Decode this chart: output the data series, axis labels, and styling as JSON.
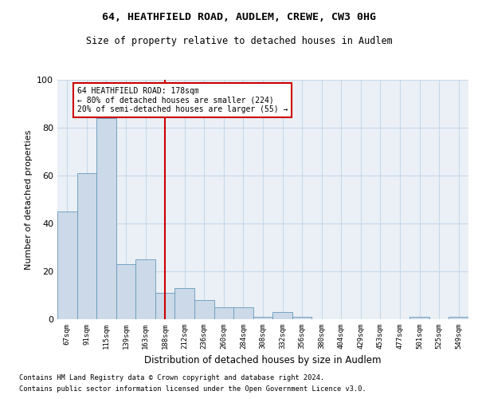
{
  "title": "64, HEATHFIELD ROAD, AUDLEM, CREWE, CW3 0HG",
  "subtitle": "Size of property relative to detached houses in Audlem",
  "xlabel": "Distribution of detached houses by size in Audlem",
  "ylabel": "Number of detached properties",
  "bar_labels": [
    "67sqm",
    "91sqm",
    "115sqm",
    "139sqm",
    "163sqm",
    "188sqm",
    "212sqm",
    "236sqm",
    "260sqm",
    "284sqm",
    "308sqm",
    "332sqm",
    "356sqm",
    "380sqm",
    "404sqm",
    "429sqm",
    "453sqm",
    "477sqm",
    "501sqm",
    "525sqm",
    "549sqm"
  ],
  "bar_values": [
    45,
    61,
    84,
    23,
    25,
    11,
    13,
    8,
    5,
    5,
    1,
    3,
    1,
    0,
    0,
    0,
    0,
    0,
    1,
    0,
    1
  ],
  "bar_color": "#ccd9e8",
  "bar_edge_color": "#6699bb",
  "vline_x": 5,
  "vline_color": "#cc0000",
  "annotation_box_color": "#cc0000",
  "annotation_lines": [
    "64 HEATHFIELD ROAD: 178sqm",
    "← 80% of detached houses are smaller (224)",
    "20% of semi-detached houses are larger (55) →"
  ],
  "ylim": [
    0,
    100
  ],
  "yticks": [
    0,
    20,
    40,
    60,
    80,
    100
  ],
  "grid_color": "#c8d8e8",
  "bg_color": "#eaf0f6",
  "footnote1": "Contains HM Land Registry data © Crown copyright and database right 2024.",
  "footnote2": "Contains public sector information licensed under the Open Government Licence v3.0."
}
